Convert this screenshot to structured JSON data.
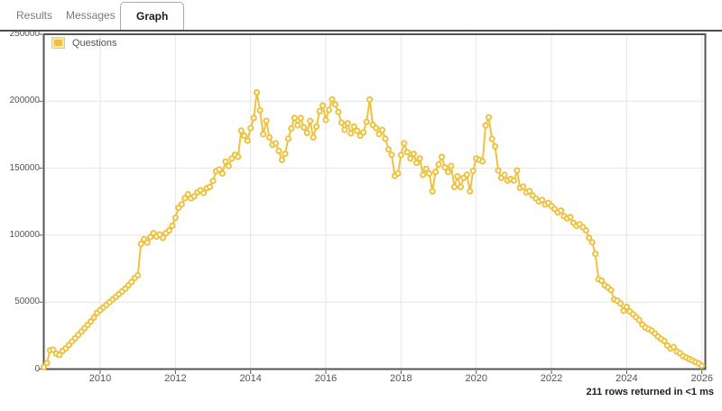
{
  "tabs": [
    {
      "label": "Results",
      "active": false
    },
    {
      "label": "Messages",
      "active": false
    },
    {
      "label": "Graph",
      "active": true
    }
  ],
  "status": {
    "text": "211 rows returned in <1 ms"
  },
  "chart_data": {
    "type": "line",
    "series_name": "Questions",
    "color": "#EDC240",
    "point_fill": "#FFFFFF",
    "grid_color": "#e6e6e6",
    "border_color": "#545454",
    "label_color": "#545454",
    "grid": true,
    "legend_position": "top-left",
    "x_start": {
      "year": 2008,
      "month": 7
    },
    "x_unit": "month",
    "x_ticks": [
      2010,
      2012,
      2014,
      2016,
      2018,
      2020,
      2022,
      2024,
      2026
    ],
    "y_ticks": [
      0,
      50000,
      100000,
      150000,
      200000,
      250000
    ],
    "ylim": [
      0,
      250000
    ],
    "values": [
      1500,
      4500,
      14000,
      14500,
      11500,
      10500,
      13500,
      15500,
      18000,
      20500,
      23000,
      25500,
      28000,
      30500,
      33000,
      35500,
      38500,
      42000,
      44000,
      46000,
      48000,
      50000,
      52000,
      54000,
      56000,
      58000,
      60000,
      62500,
      65000,
      68000,
      70000,
      93500,
      97000,
      94500,
      98500,
      101500,
      99000,
      100500,
      98000,
      101500,
      103500,
      107000,
      113000,
      120500,
      123000,
      127500,
      130500,
      127500,
      129000,
      132000,
      133500,
      131500,
      135000,
      136000,
      140500,
      147700,
      149000,
      146000,
      155000,
      151700,
      157300,
      160000,
      158500,
      178000,
      174200,
      170500,
      180000,
      187500,
      206500,
      193200,
      175300,
      185300,
      173000,
      167400,
      168600,
      163000,
      156200,
      160700,
      172000,
      179700,
      187500,
      182000,
      187500,
      180400,
      176400,
      185300,
      173000,
      181000,
      192500,
      196800,
      186000,
      193500,
      201400,
      197500,
      192000,
      184000,
      178600,
      183500,
      176000,
      181000,
      177900,
      174200,
      176700,
      184600,
      201300,
      182300,
      180000,
      175500,
      178600,
      172000,
      164000,
      160000,
      144200,
      146000,
      159800,
      168600,
      162000,
      157300,
      160700,
      154000,
      157300,
      145000,
      149500,
      146100,
      132700,
      147200,
      152800,
      158400,
      150600,
      147200,
      151700,
      136000,
      143900,
      136000,
      142800,
      145100,
      132700,
      148000,
      157300,
      156200,
      155100,
      181900,
      188000,
      171900,
      166300,
      148300,
      142800,
      145000,
      140800,
      141900,
      140800,
      148300,
      135200,
      136300,
      131900,
      132900,
      129600,
      127400,
      125200,
      126300,
      122900,
      124100,
      121800,
      119600,
      117000,
      118300,
      114100,
      112500,
      113500,
      109200,
      107000,
      108100,
      105900,
      103600,
      98000,
      94700,
      86000,
      67000,
      66000,
      62500,
      61000,
      59000,
      52000,
      51000,
      49000,
      43500,
      46500,
      43000,
      41000,
      38800,
      36600,
      33200,
      31000,
      29900,
      28700,
      26500,
      24300,
      22500,
      20900,
      17600,
      15300,
      16400,
      13100,
      11900,
      9700,
      8600,
      7500,
      6400,
      5200,
      4100,
      2500
    ]
  }
}
